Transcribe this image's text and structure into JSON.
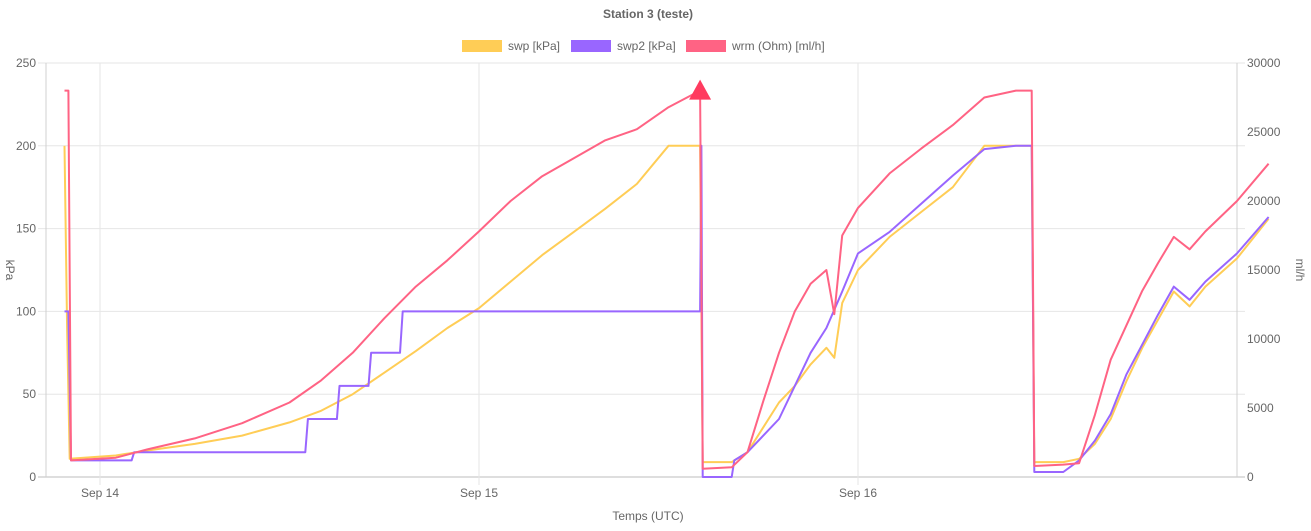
{
  "chart_data": {
    "type": "line",
    "title": "Station 3 (teste)",
    "xlabel": "Temps (UTC)",
    "ylabel_left": "kPa",
    "ylabel_right": "ml/h",
    "x_ticks": [
      "Sep 14",
      "Sep 15",
      "Sep 16"
    ],
    "y_left_ticks": [
      0,
      50,
      100,
      150,
      200,
      250
    ],
    "y_right_ticks": [
      0,
      5000,
      10000,
      15000,
      20000,
      25000,
      30000
    ],
    "ylim_left": [
      0,
      250
    ],
    "ylim_right": [
      0,
      30000
    ],
    "grid": true,
    "legend_position": "top",
    "series": [
      {
        "name": "swp [kPa]",
        "axis": "left",
        "color": "#ffcd56",
        "points": [
          [
            "Sep 13 21:45",
            200
          ],
          [
            "Sep 13 21:55",
            90
          ],
          [
            "Sep 13 22:05",
            11
          ],
          [
            "Sep 14 01:00",
            13
          ],
          [
            "Sep 14 03:00",
            16
          ],
          [
            "Sep 14 06:00",
            20
          ],
          [
            "Sep 14 09:00",
            25
          ],
          [
            "Sep 14 12:00",
            33
          ],
          [
            "Sep 14 14:00",
            40
          ],
          [
            "Sep 14 16:00",
            50
          ],
          [
            "Sep 14 18:00",
            63
          ],
          [
            "Sep 14 20:00",
            76
          ],
          [
            "Sep 14 22:00",
            90
          ],
          [
            "Sep 15 00:00",
            102
          ],
          [
            "Sep 15 02:00",
            118
          ],
          [
            "Sep 15 04:00",
            134
          ],
          [
            "Sep 15 06:00",
            148
          ],
          [
            "Sep 15 08:00",
            162
          ],
          [
            "Sep 15 10:00",
            177
          ],
          [
            "Sep 15 12:00",
            200
          ],
          [
            "Sep 15 13:00",
            200
          ],
          [
            "Sep 15 14:00",
            200
          ],
          [
            "Sep 15 14:10",
            9
          ],
          [
            "Sep 15 16:00",
            9
          ],
          [
            "Sep 15 17:00",
            15
          ],
          [
            "Sep 15 18:00",
            30
          ],
          [
            "Sep 15 19:00",
            45
          ],
          [
            "Sep 15 20:00",
            55
          ],
          [
            "Sep 15 21:00",
            68
          ],
          [
            "Sep 15 22:00",
            78
          ],
          [
            "Sep 15 22:30",
            72
          ],
          [
            "Sep 15 23:00",
            105
          ],
          [
            "Sep 16 00:00",
            125
          ],
          [
            "Sep 16 02:00",
            145
          ],
          [
            "Sep 16 04:00",
            160
          ],
          [
            "Sep 16 06:00",
            175
          ],
          [
            "Sep 16 08:00",
            200
          ],
          [
            "Sep 16 10:00",
            200
          ],
          [
            "Sep 16 11:00",
            200
          ],
          [
            "Sep 16 11:10",
            9
          ],
          [
            "Sep 16 13:00",
            9
          ],
          [
            "Sep 16 14:00",
            11
          ],
          [
            "Sep 16 15:00",
            20
          ],
          [
            "Sep 16 16:00",
            35
          ],
          [
            "Sep 16 17:00",
            58
          ],
          [
            "Sep 16 18:00",
            78
          ],
          [
            "Sep 16 19:00",
            95
          ],
          [
            "Sep 16 20:00",
            112
          ],
          [
            "Sep 16 21:00",
            103
          ],
          [
            "Sep 16 22:00",
            115
          ],
          [
            "Sep 17 00:00",
            132
          ],
          [
            "Sep 17 02:00",
            156
          ]
        ]
      },
      {
        "name": "swp2 [kPa]",
        "axis": "left",
        "color": "#9966ff",
        "points": [
          [
            "Sep 13 21:45",
            100
          ],
          [
            "Sep 13 22:00",
            100
          ],
          [
            "Sep 13 22:10",
            10
          ],
          [
            "Sep 14 02:00",
            10
          ],
          [
            "Sep 14 02:10",
            15
          ],
          [
            "Sep 14 13:00",
            15
          ],
          [
            "Sep 14 13:10",
            35
          ],
          [
            "Sep 14 15:00",
            35
          ],
          [
            "Sep 14 15:10",
            55
          ],
          [
            "Sep 14 17:00",
            55
          ],
          [
            "Sep 14 17:10",
            75
          ],
          [
            "Sep 14 19:00",
            75
          ],
          [
            "Sep 14 19:10",
            100
          ],
          [
            "Sep 15 14:00",
            100
          ],
          [
            "Sep 15 14:05",
            200
          ],
          [
            "Sep 15 14:10",
            0
          ],
          [
            "Sep 15 16:00",
            0
          ],
          [
            "Sep 15 16:10",
            10
          ],
          [
            "Sep 15 17:00",
            15
          ],
          [
            "Sep 15 18:00",
            25
          ],
          [
            "Sep 15 19:00",
            35
          ],
          [
            "Sep 15 20:00",
            55
          ],
          [
            "Sep 15 21:00",
            75
          ],
          [
            "Sep 15 22:00",
            90
          ],
          [
            "Sep 15 23:00",
            112
          ],
          [
            "Sep 16 00:00",
            135
          ],
          [
            "Sep 16 02:00",
            148
          ],
          [
            "Sep 16 04:00",
            165
          ],
          [
            "Sep 16 06:00",
            182
          ],
          [
            "Sep 16 08:00",
            198
          ],
          [
            "Sep 16 10:00",
            200
          ],
          [
            "Sep 16 11:00",
            200
          ],
          [
            "Sep 16 11:10",
            3
          ],
          [
            "Sep 16 13:00",
            3
          ],
          [
            "Sep 16 14:00",
            10
          ],
          [
            "Sep 16 15:00",
            22
          ],
          [
            "Sep 16 16:00",
            38
          ],
          [
            "Sep 16 17:00",
            62
          ],
          [
            "Sep 16 18:00",
            80
          ],
          [
            "Sep 16 19:00",
            98
          ],
          [
            "Sep 16 20:00",
            115
          ],
          [
            "Sep 16 21:00",
            107
          ],
          [
            "Sep 16 22:00",
            118
          ],
          [
            "Sep 17 00:00",
            135
          ],
          [
            "Sep 17 02:00",
            157
          ]
        ]
      },
      {
        "name": "wrm (Ohm) [ml/h]",
        "axis": "right",
        "color": "#ff6384",
        "points": [
          [
            "Sep 13 21:45",
            28000
          ],
          [
            "Sep 13 22:00",
            28000
          ],
          [
            "Sep 13 22:10",
            1200
          ],
          [
            "Sep 14 01:00",
            1400
          ],
          [
            "Sep 14 03:00",
            2000
          ],
          [
            "Sep 14 06:00",
            2800
          ],
          [
            "Sep 14 09:00",
            3900
          ],
          [
            "Sep 14 12:00",
            5400
          ],
          [
            "Sep 14 14:00",
            7000
          ],
          [
            "Sep 14 16:00",
            9000
          ],
          [
            "Sep 14 18:00",
            11500
          ],
          [
            "Sep 14 20:00",
            13800
          ],
          [
            "Sep 14 22:00",
            15700
          ],
          [
            "Sep 15 00:00",
            17800
          ],
          [
            "Sep 15 02:00",
            20000
          ],
          [
            "Sep 15 04:00",
            21800
          ],
          [
            "Sep 15 06:00",
            23100
          ],
          [
            "Sep 15 08:00",
            24400
          ],
          [
            "Sep 15 10:00",
            25200
          ],
          [
            "Sep 15 12:00",
            26800
          ],
          [
            "Sep 15 14:00",
            28000
          ],
          [
            "Sep 15 14:10",
            600
          ],
          [
            "Sep 15 16:00",
            700
          ],
          [
            "Sep 15 17:00",
            1800
          ],
          [
            "Sep 15 18:00",
            5500
          ],
          [
            "Sep 15 19:00",
            9000
          ],
          [
            "Sep 15 20:00",
            12000
          ],
          [
            "Sep 15 21:00",
            14000
          ],
          [
            "Sep 15 22:00",
            15000
          ],
          [
            "Sep 15 22:30",
            11800
          ],
          [
            "Sep 15 23:00",
            17500
          ],
          [
            "Sep 16 00:00",
            19500
          ],
          [
            "Sep 16 02:00",
            22000
          ],
          [
            "Sep 16 04:00",
            23800
          ],
          [
            "Sep 16 06:00",
            25500
          ],
          [
            "Sep 16 08:00",
            27500
          ],
          [
            "Sep 16 10:00",
            28000
          ],
          [
            "Sep 16 11:00",
            28000
          ],
          [
            "Sep 16 11:10",
            800
          ],
          [
            "Sep 16 13:00",
            900
          ],
          [
            "Sep 16 14:00",
            1000
          ],
          [
            "Sep 16 15:00",
            4500
          ],
          [
            "Sep 16 16:00",
            8500
          ],
          [
            "Sep 16 17:00",
            11000
          ],
          [
            "Sep 16 18:00",
            13500
          ],
          [
            "Sep 16 19:00",
            15500
          ],
          [
            "Sep 16 20:00",
            17400
          ],
          [
            "Sep 16 21:00",
            16500
          ],
          [
            "Sep 16 22:00",
            17800
          ],
          [
            "Sep 17 00:00",
            20000
          ],
          [
            "Sep 17 02:00",
            22700
          ]
        ]
      }
    ],
    "annotations": [
      {
        "type": "triangle-marker",
        "series": "wrm (Ohm) [ml/h]",
        "x": "Sep 15 14:00",
        "y": 28000,
        "color": "#ff3b5f"
      }
    ]
  }
}
